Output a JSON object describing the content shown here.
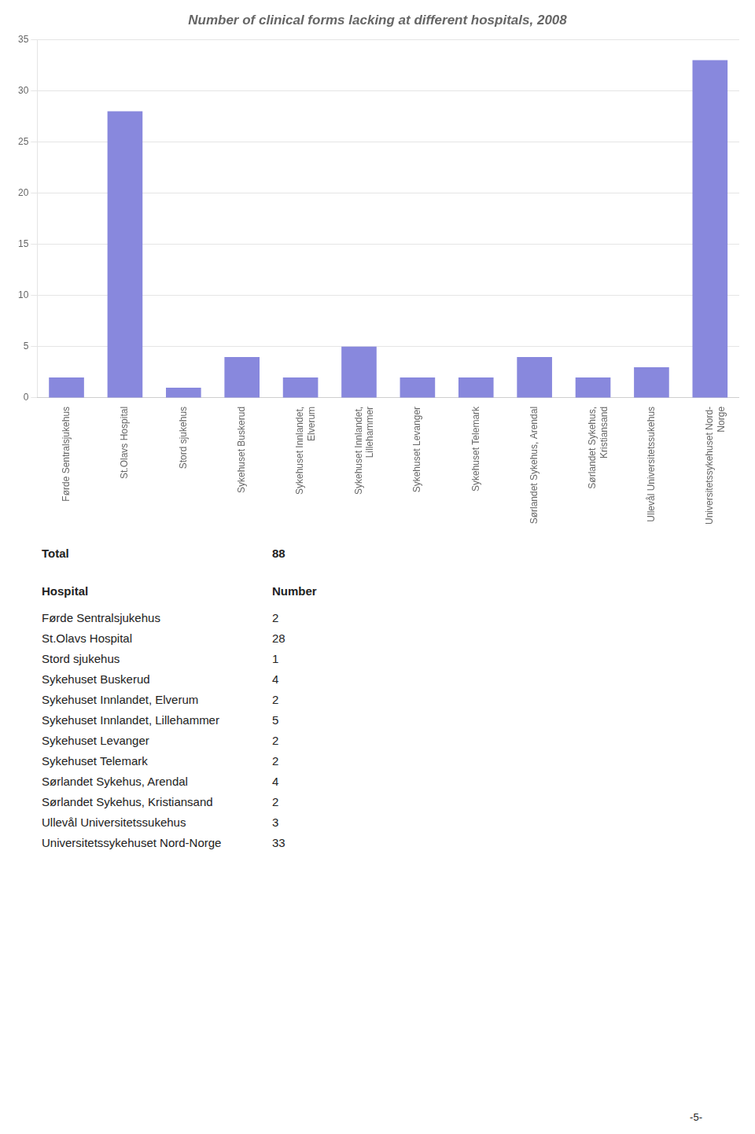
{
  "chart_data": {
    "type": "bar",
    "title": "Number of clinical forms lacking at different hospitals, 2008",
    "categories": [
      "Førde Sentralsjukehus",
      "St.Olavs Hospital",
      "Stord sjukehus",
      "Sykehuset Buskerud",
      "Sykehuset Innlandet,\nElverum",
      "Sykehuset Innlandet,\nLillehammer",
      "Sykehuset Levanger",
      "Sykehuset Telemark",
      "Sørlandet Sykehus, Arendal",
      "Sørlandet Sykehus,\nKristiansand",
      "Ullevål Universitetssukehus",
      "Universitetssykehuset Nord-\nNorge"
    ],
    "values": [
      2,
      28,
      1,
      4,
      2,
      5,
      2,
      2,
      4,
      2,
      3,
      33
    ],
    "color": "#8888dd",
    "ylim": [
      0,
      35
    ],
    "yticks": [
      0,
      5,
      10,
      15,
      20,
      25,
      30,
      35
    ],
    "grid": true,
    "total": {
      "label": "Total",
      "value": 88
    },
    "table": {
      "columns": [
        "Hospital",
        "Number"
      ],
      "rows": [
        [
          "Førde Sentralsjukehus",
          2
        ],
        [
          "St.Olavs Hospital",
          28
        ],
        [
          "Stord sjukehus",
          1
        ],
        [
          "Sykehuset Buskerud",
          4
        ],
        [
          "Sykehuset Innlandet, Elverum",
          2
        ],
        [
          "Sykehuset Innlandet, Lillehammer",
          5
        ],
        [
          "Sykehuset Levanger",
          2
        ],
        [
          "Sykehuset Telemark",
          2
        ],
        [
          "Sørlandet Sykehus, Arendal",
          4
        ],
        [
          "Sørlandet Sykehus, Kristiansand",
          2
        ],
        [
          "Ullevål Universitetssukehus",
          3
        ],
        [
          "Universitetssykehuset Nord-Norge",
          33
        ]
      ]
    },
    "annotations": [
      "-5-"
    ]
  }
}
